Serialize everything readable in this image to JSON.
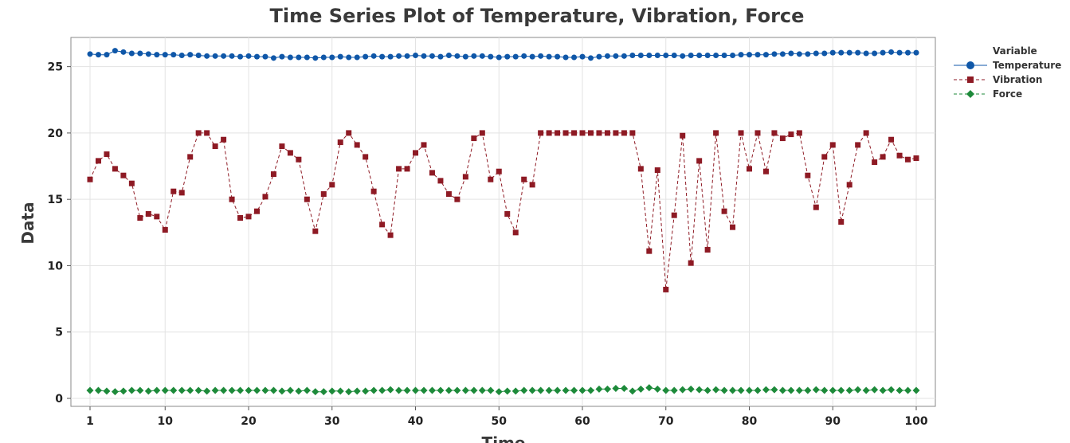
{
  "chart_data": {
    "type": "line",
    "title": "Time Series Plot of Temperature, Vibration, Force",
    "xlabel": "Time",
    "ylabel": "Data",
    "xlim": [
      1,
      100
    ],
    "ylim": [
      -0.6,
      27.2
    ],
    "xticks": [
      1,
      10,
      20,
      30,
      40,
      50,
      60,
      70,
      80,
      90,
      100
    ],
    "yticks": [
      0,
      5,
      10,
      15,
      20,
      25
    ],
    "grid": true,
    "legend": {
      "title": "Variable",
      "placement": "top-right, outside plot"
    },
    "x": [
      1,
      2,
      3,
      4,
      5,
      6,
      7,
      8,
      9,
      10,
      11,
      12,
      13,
      14,
      15,
      16,
      17,
      18,
      19,
      20,
      21,
      22,
      23,
      24,
      25,
      26,
      27,
      28,
      29,
      30,
      31,
      32,
      33,
      34,
      35,
      36,
      37,
      38,
      39,
      40,
      41,
      42,
      43,
      44,
      45,
      46,
      47,
      48,
      49,
      50,
      51,
      52,
      53,
      54,
      55,
      56,
      57,
      58,
      59,
      60,
      61,
      62,
      63,
      64,
      65,
      66,
      67,
      68,
      69,
      70,
      71,
      72,
      73,
      74,
      75,
      76,
      77,
      78,
      79,
      80,
      81,
      82,
      83,
      84,
      85,
      86,
      87,
      88,
      89,
      90,
      91,
      92,
      93,
      94,
      95,
      96,
      97,
      98,
      99,
      100
    ],
    "series": [
      {
        "name": "Temperature",
        "color": "#0f57a8",
        "marker": "circle",
        "line": "solid",
        "values": [
          25.95,
          25.9,
          25.9,
          26.2,
          26.1,
          26.0,
          26.0,
          25.95,
          25.9,
          25.9,
          25.9,
          25.85,
          25.9,
          25.85,
          25.8,
          25.8,
          25.8,
          25.8,
          25.75,
          25.8,
          25.75,
          25.75,
          25.65,
          25.75,
          25.7,
          25.7,
          25.7,
          25.65,
          25.7,
          25.7,
          25.75,
          25.7,
          25.7,
          25.75,
          25.8,
          25.75,
          25.75,
          25.8,
          25.8,
          25.85,
          25.8,
          25.8,
          25.75,
          25.85,
          25.8,
          25.75,
          25.8,
          25.8,
          25.75,
          25.7,
          25.75,
          25.75,
          25.8,
          25.75,
          25.8,
          25.75,
          25.75,
          25.7,
          25.7,
          25.75,
          25.65,
          25.75,
          25.8,
          25.8,
          25.8,
          25.85,
          25.85,
          25.85,
          25.85,
          25.85,
          25.85,
          25.8,
          25.85,
          25.85,
          25.85,
          25.85,
          25.85,
          25.85,
          25.9,
          25.9,
          25.9,
          25.9,
          25.95,
          25.95,
          26.0,
          25.95,
          25.95,
          26.0,
          26.0,
          26.05,
          26.05,
          26.05,
          26.05,
          26.0,
          26.0,
          26.05,
          26.1,
          26.05,
          26.05,
          26.05
        ]
      },
      {
        "name": "Vibration",
        "color": "#8e1a24",
        "marker": "square",
        "line": "dashed",
        "values": [
          16.5,
          17.9,
          18.4,
          17.3,
          16.8,
          16.2,
          13.6,
          13.9,
          13.7,
          12.7,
          15.6,
          15.5,
          18.2,
          20.0,
          20.0,
          19.0,
          19.5,
          15.0,
          13.6,
          13.7,
          14.1,
          15.2,
          16.9,
          19.0,
          18.5,
          18.0,
          15.0,
          12.6,
          15.4,
          16.1,
          19.3,
          20.0,
          19.1,
          18.2,
          15.6,
          13.1,
          12.3,
          17.3,
          17.3,
          18.5,
          19.1,
          17.0,
          16.4,
          15.4,
          15.0,
          16.7,
          19.6,
          20.0,
          16.5,
          17.1,
          13.9,
          12.5,
          16.5,
          16.1,
          20.0,
          20.0,
          20.0,
          20.0,
          20.0,
          20.0,
          20.0,
          20.0,
          20.0,
          20.0,
          20.0,
          20.0,
          17.3,
          11.1,
          17.2,
          8.2,
          13.8,
          19.8,
          10.2,
          17.9,
          11.2,
          20.0,
          14.1,
          12.9,
          20.0,
          17.3,
          20.0,
          17.1,
          20.0,
          19.6,
          19.9,
          20.0,
          16.8,
          14.4,
          18.2,
          19.1,
          13.3,
          16.1,
          19.1,
          20.0,
          17.8,
          18.2,
          19.5,
          18.3,
          18.0,
          18.1
        ]
      },
      {
        "name": "Force",
        "color": "#1d8a3a",
        "marker": "diamond",
        "line": "dashed",
        "values": [
          0.6,
          0.6,
          0.55,
          0.5,
          0.55,
          0.6,
          0.6,
          0.55,
          0.6,
          0.6,
          0.6,
          0.6,
          0.6,
          0.6,
          0.55,
          0.6,
          0.6,
          0.6,
          0.6,
          0.6,
          0.6,
          0.6,
          0.6,
          0.55,
          0.6,
          0.55,
          0.6,
          0.5,
          0.5,
          0.55,
          0.55,
          0.5,
          0.55,
          0.55,
          0.6,
          0.6,
          0.65,
          0.6,
          0.6,
          0.6,
          0.6,
          0.6,
          0.6,
          0.6,
          0.6,
          0.6,
          0.6,
          0.6,
          0.6,
          0.5,
          0.55,
          0.55,
          0.6,
          0.6,
          0.6,
          0.6,
          0.6,
          0.6,
          0.6,
          0.6,
          0.6,
          0.7,
          0.7,
          0.75,
          0.75,
          0.55,
          0.7,
          0.8,
          0.7,
          0.6,
          0.6,
          0.65,
          0.7,
          0.65,
          0.6,
          0.65,
          0.6,
          0.6,
          0.6,
          0.6,
          0.6,
          0.65,
          0.65,
          0.6,
          0.6,
          0.6,
          0.6,
          0.65,
          0.6,
          0.6,
          0.6,
          0.6,
          0.65,
          0.6,
          0.65,
          0.6,
          0.65,
          0.6,
          0.6,
          0.6
        ]
      }
    ]
  }
}
